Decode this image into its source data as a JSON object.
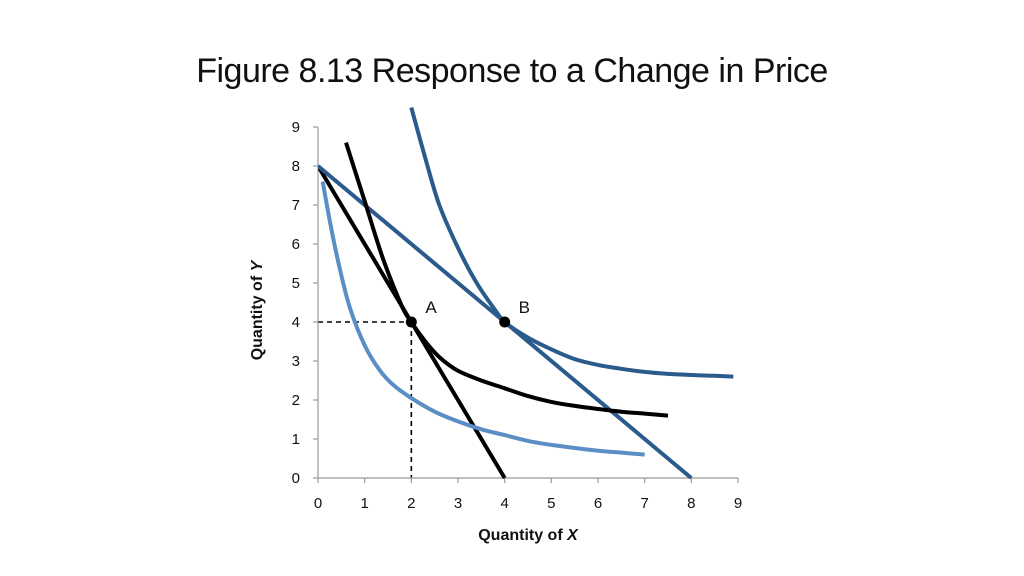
{
  "title": "Figure 8.13 Response to a Change in Price",
  "chart_data": {
    "type": "line",
    "title": "Figure 8.13 Response to a Change in Price",
    "xlabel": "Quantity of X",
    "ylabel": "Quantity of Y",
    "xlabel_parts": [
      "Quantity of ",
      "X"
    ],
    "ylabel_parts": [
      "Quantity of ",
      "Y"
    ],
    "xlim": [
      0,
      9
    ],
    "ylim": [
      0,
      9
    ],
    "xticks": [
      "0",
      "1",
      "2",
      "3",
      "4",
      "5",
      "6",
      "7",
      "8",
      "9"
    ],
    "yticks": [
      "0",
      "1",
      "2",
      "3",
      "4",
      "5",
      "6",
      "7",
      "8",
      "9"
    ],
    "grid": false,
    "colors": {
      "black": "#000000",
      "dark_blue": "#2b5a8c",
      "light_blue": "#5b8ec4",
      "axis": "#999999"
    },
    "series": [
      {
        "kind": "budget-line-original",
        "color": "#000000",
        "x": [
          0,
          2,
          4
        ],
        "y": [
          8,
          4,
          0
        ]
      },
      {
        "kind": "budget-line-new",
        "color": "#2b5a8c",
        "x": [
          0,
          4,
          8
        ],
        "y": [
          8,
          4,
          0
        ]
      },
      {
        "kind": "indifference-curve-A",
        "color": "#000000",
        "x": [
          0.6,
          1.0,
          1.4,
          1.8,
          2.0,
          2.3,
          2.6,
          3.0,
          3.5,
          4.0,
          4.5,
          5.0,
          5.5,
          6.0,
          6.5,
          7.0,
          7.5
        ],
        "y": [
          8.6,
          7.1,
          5.6,
          4.4,
          4.0,
          3.5,
          3.1,
          2.75,
          2.5,
          2.3,
          2.1,
          1.95,
          1.85,
          1.77,
          1.7,
          1.65,
          1.6
        ]
      },
      {
        "kind": "indifference-curve-B",
        "color": "#2b5a8c",
        "x": [
          2.0,
          2.3,
          2.6,
          3.0,
          3.4,
          3.8,
          4.0,
          4.5,
          5.0,
          5.5,
          6.0,
          6.5,
          7.0,
          7.5,
          8.0,
          8.5,
          8.9
        ],
        "y": [
          9.5,
          8.2,
          7.0,
          5.9,
          5.0,
          4.3,
          4.0,
          3.6,
          3.3,
          3.05,
          2.9,
          2.8,
          2.72,
          2.67,
          2.64,
          2.62,
          2.6
        ]
      },
      {
        "kind": "indifference-curve-low",
        "color": "#5b8ec4",
        "x": [
          0.1,
          0.3,
          0.5,
          0.7,
          1.0,
          1.3,
          1.6,
          2.0,
          2.5,
          3.0,
          3.5,
          4.0,
          4.5,
          5.0,
          5.5,
          6.0,
          6.5,
          7.0
        ],
        "y": [
          7.6,
          6.3,
          5.2,
          4.3,
          3.4,
          2.8,
          2.4,
          2.05,
          1.7,
          1.45,
          1.25,
          1.1,
          0.95,
          0.85,
          0.77,
          0.7,
          0.65,
          0.6
        ]
      }
    ],
    "points": [
      {
        "label": "A",
        "x": 2,
        "y": 4
      },
      {
        "label": "B",
        "x": 4,
        "y": 4
      }
    ],
    "guides": {
      "x": 2,
      "y": 4,
      "style": "dashed"
    }
  }
}
